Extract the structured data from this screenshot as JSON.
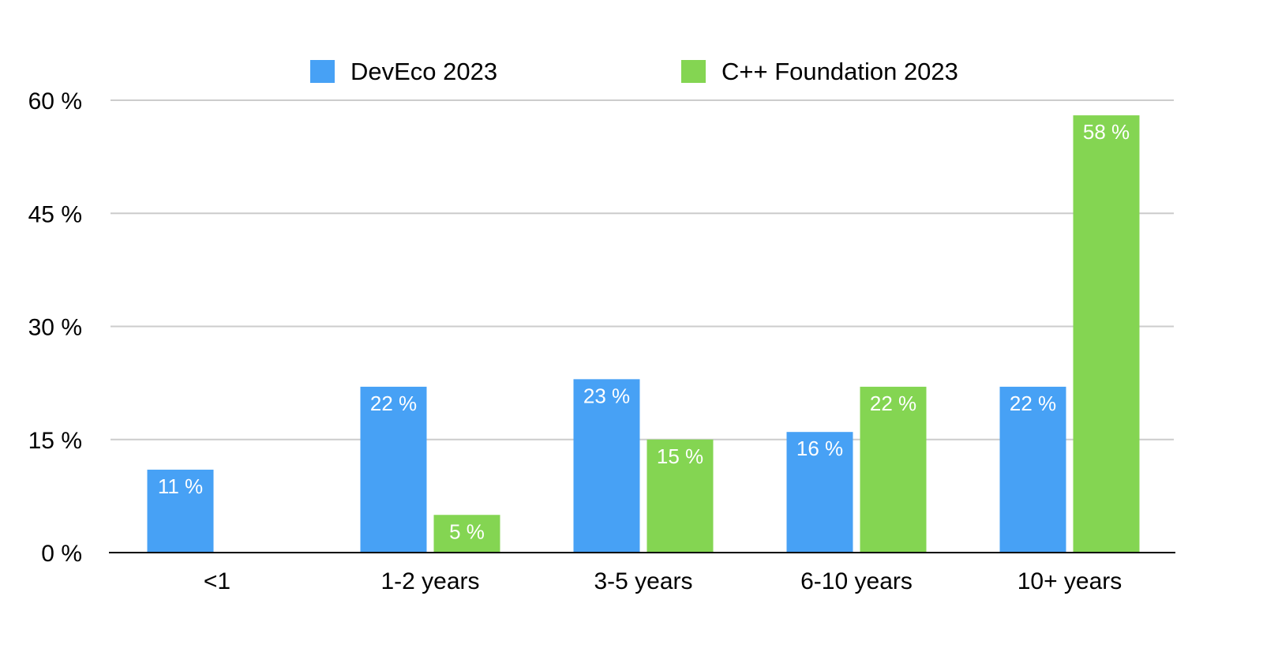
{
  "chart_data": {
    "type": "bar",
    "title": "",
    "xlabel": "",
    "ylabel": "",
    "categories": [
      "<1",
      "1-2 years",
      "3-5 years",
      "6-10 years",
      "10+ years"
    ],
    "series": [
      {
        "name": "DevEco 2023",
        "color": "#47a1f5",
        "values": [
          11,
          22,
          23,
          16,
          22
        ],
        "labels": [
          "11 %",
          "22 %",
          "23 %",
          "16 %",
          "22 %"
        ]
      },
      {
        "name": "C++ Foundation 2023",
        "color": "#84d552",
        "values": [
          null,
          5,
          15,
          22,
          58
        ],
        "labels": [
          null,
          "5 %",
          "15 %",
          "22 %",
          "58 %"
        ]
      }
    ],
    "ylim": [
      0,
      60
    ],
    "yticks": [
      0,
      15,
      30,
      45,
      60
    ],
    "ytick_labels": [
      "0 %",
      "15 %",
      "30 %",
      "45 %",
      "60 %"
    ],
    "grid": true,
    "legend_position": "top-center",
    "gridline_color": "#cccccc",
    "axis_color": "#000000"
  }
}
